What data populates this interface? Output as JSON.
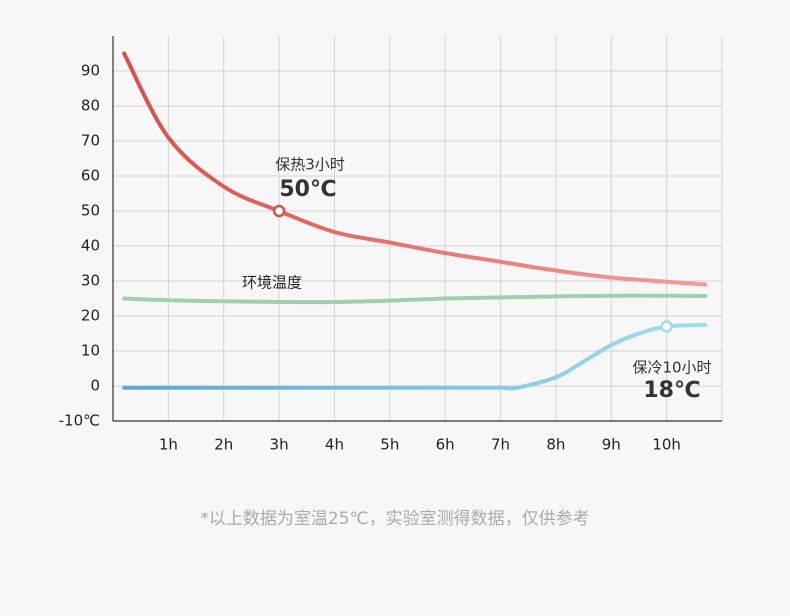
{
  "chart_data": {
    "type": "line",
    "xlim": [
      0,
      11
    ],
    "ylim": [
      -10,
      100
    ],
    "xticks": [
      {
        "value": 1,
        "label": "1h"
      },
      {
        "value": 2,
        "label": "2h"
      },
      {
        "value": 3,
        "label": "3h"
      },
      {
        "value": 4,
        "label": "4h"
      },
      {
        "value": 5,
        "label": "5h"
      },
      {
        "value": 6,
        "label": "6h"
      },
      {
        "value": 7,
        "label": "7h"
      },
      {
        "value": 8,
        "label": "8h"
      },
      {
        "value": 9,
        "label": "9h"
      },
      {
        "value": 10,
        "label": "10h"
      }
    ],
    "yticks": [
      {
        "value": -10,
        "label": "-10℃"
      },
      0,
      10,
      20,
      30,
      40,
      50,
      60,
      70,
      80,
      90
    ],
    "grid": true,
    "series": [
      {
        "colors": [
          "#d94f4a",
          "#f59b99"
        ],
        "x": [
          0.2,
          1,
          2,
          3,
          4,
          5,
          6,
          7,
          8,
          9,
          10,
          10.7
        ],
        "values": [
          95,
          71,
          57,
          50,
          44,
          41,
          38,
          35.5,
          33,
          31,
          29.8,
          29
        ]
      },
      {
        "colors": [
          "#9fd0ad",
          "#9fd0ad"
        ],
        "x": [
          0.2,
          1,
          2,
          3,
          4,
          5,
          6,
          7,
          8,
          9,
          10,
          10.7
        ],
        "values": [
          25,
          24.5,
          24.2,
          24,
          24,
          24.4,
          25,
          25.3,
          25.6,
          25.8,
          25.8,
          25.7
        ]
      },
      {
        "colors": [
          "#5fa6d6",
          "#9fdfec"
        ],
        "x": [
          0.2,
          1,
          2,
          3,
          4,
          5,
          6,
          7,
          7.3,
          8,
          8.5,
          9,
          9.5,
          10,
          10.7
        ],
        "values": [
          -0.5,
          -0.5,
          -0.5,
          -0.5,
          -0.5,
          -0.5,
          -0.5,
          -0.5,
          -0.5,
          2.5,
          7,
          11.7,
          15,
          17,
          17.5
        ]
      }
    ],
    "annotations": [
      "保热3小时",
      "50℃",
      "环境温度",
      "保冷10小时",
      "18℃"
    ],
    "footnote": "*以上数据为室温25℃，实验室测得数据，仅供参考"
  }
}
